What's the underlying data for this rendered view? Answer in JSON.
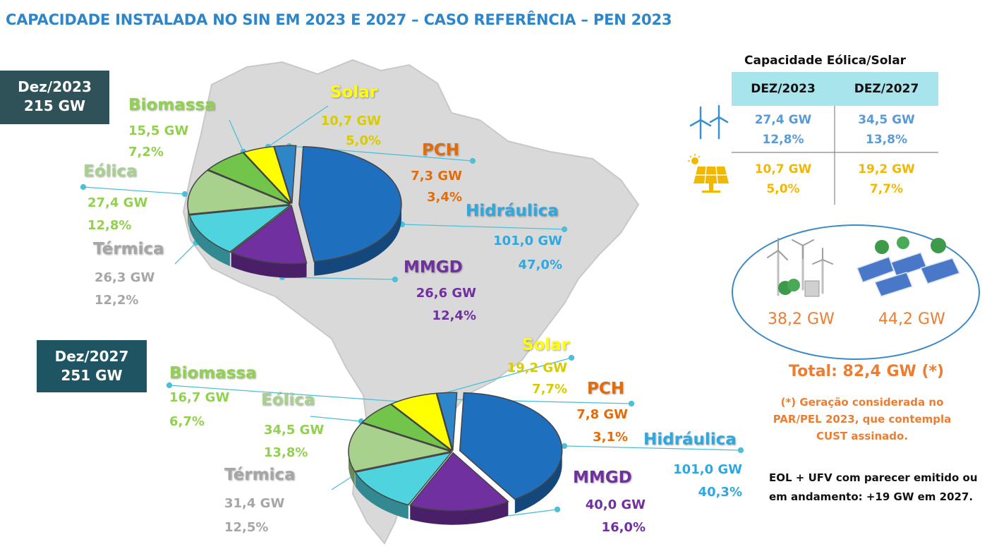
{
  "title": "CAPACIDADE INSTALADA NO SIN EM 2023 E 2027 – CASO REFERÊNCIA – PEN 2023",
  "colors": {
    "hidraulica": "#1f6fbf",
    "mmgd": "#7030a0",
    "termica": "#4fd3df",
    "eolica": "#a9d18e",
    "biomassa": "#70c54a",
    "solar": "#ffff00",
    "pch": "#2e86c8"
  },
  "badge_2023": {
    "line1": "Dez/2023",
    "line2": "215 GW"
  },
  "badge_2027": {
    "line1": "Dez/2027",
    "line2": "251 GW"
  },
  "labels_2023": {
    "solar": {
      "name": "Solar",
      "gw": "10,7 GW",
      "pct": "5,0%"
    },
    "biomassa": {
      "name": "Biomassa",
      "gw": "15,5 GW",
      "pct": "7,2%"
    },
    "eolica": {
      "name": "Eólica",
      "gw": "27,4 GW",
      "pct": "12,8%"
    },
    "termica": {
      "name": "Térmica",
      "gw": "26,3 GW",
      "pct": "12,2%"
    },
    "pch": {
      "name": "PCH",
      "gw": "7,3 GW",
      "pct": "3,4%"
    },
    "hidraulica": {
      "name": "Hidráulica",
      "gw": "101,0 GW",
      "pct": "47,0%"
    },
    "mmgd": {
      "name": "MMGD",
      "gw": "26,6 GW",
      "pct": "12,4%"
    }
  },
  "labels_2027": {
    "solar": {
      "name": "Solar",
      "gw": "19,2 GW",
      "pct": "7,7%"
    },
    "biomassa": {
      "name": "Biomassa",
      "gw": "16,7 GW",
      "pct": "6,7%"
    },
    "eolica": {
      "name": "Eólica",
      "gw": "34,5 GW",
      "pct": "13,8%"
    },
    "termica": {
      "name": "Térmica",
      "gw": "31,4 GW",
      "pct": "12,5%"
    },
    "pch": {
      "name": "PCH",
      "gw": "7,8 GW",
      "pct": "3,1%"
    },
    "hidraulica": {
      "name": "Hidráulica",
      "gw": "101,0 GW",
      "pct": "40,3%"
    },
    "mmgd": {
      "name": "MMGD",
      "gw": "40,0 GW",
      "pct": "16,0%"
    }
  },
  "chart_data": [
    {
      "type": "pie",
      "title": "Dez/2023 215 GW",
      "categories": [
        "Hidráulica",
        "MMGD",
        "Térmica",
        "Eólica",
        "Biomassa",
        "Solar",
        "PCH"
      ],
      "values": [
        101.0,
        26.6,
        26.3,
        27.4,
        15.5,
        10.7,
        7.3
      ],
      "percentages": [
        47.0,
        12.4,
        12.2,
        12.8,
        7.2,
        5.0,
        3.4
      ],
      "unit": "GW"
    },
    {
      "type": "pie",
      "title": "Dez/2027 251 GW",
      "categories": [
        "Hidráulica",
        "MMGD",
        "Térmica",
        "Eólica",
        "Biomassa",
        "Solar",
        "PCH"
      ],
      "values": [
        101.0,
        40.0,
        31.4,
        34.5,
        16.7,
        19.2,
        7.8
      ],
      "percentages": [
        40.3,
        16.0,
        12.5,
        13.8,
        6.7,
        7.7,
        3.1
      ],
      "unit": "GW"
    },
    {
      "type": "table",
      "title": "Capacidade Eólica/Solar",
      "columns": [
        "DEZ/2023",
        "DEZ/2027"
      ],
      "rows": [
        {
          "name": "Eólica",
          "icon": "wind-turbine-icon",
          "values": [
            [
              "27,4 GW",
              "12,8%"
            ],
            [
              "34,5 GW",
              "13,8%"
            ]
          ]
        },
        {
          "name": "Solar",
          "icon": "solar-panel-icon",
          "values": [
            [
              "10,7 GW",
              "5,0%"
            ],
            [
              "19,2 GW",
              "7,7%"
            ]
          ]
        }
      ]
    }
  ],
  "table": {
    "title": "Capacidade Eólica/Solar",
    "col1": "DEZ/2023",
    "col2": "DEZ/2027",
    "eol_2023_gw": "27,4 GW",
    "eol_2023_pct": "12,8%",
    "eol_2027_gw": "34,5 GW",
    "eol_2027_pct": "13,8%",
    "sol_2023_gw": "10,7 GW",
    "sol_2023_pct": "5,0%",
    "sol_2027_gw": "19,2 GW",
    "sol_2027_pct": "7,7%"
  },
  "ellipse": {
    "wind_total": "38,2 GW",
    "solar_total": "44,2 GW"
  },
  "total": "Total: 82,4 GW (*)",
  "note": "(*) Geração considerada no PAR/PEL 2023, que contempla CUST assinado.",
  "eol_note": "EOL + UFV com parecer emitido ou em andamento: +19 GW em 2027."
}
